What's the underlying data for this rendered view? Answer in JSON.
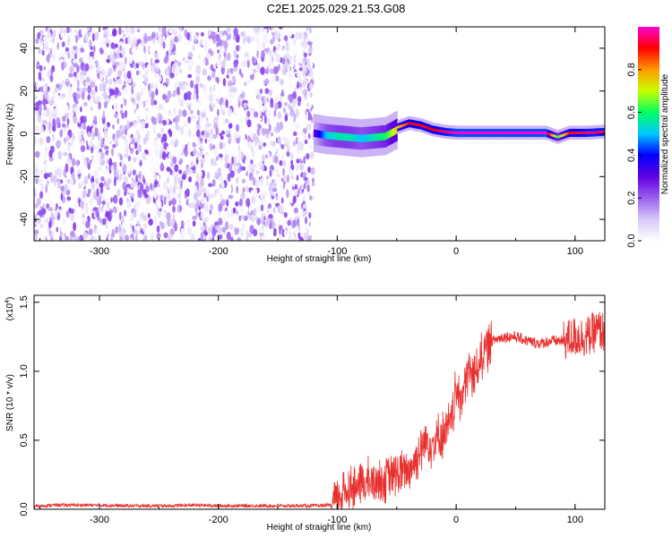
{
  "title": "C2E1.2025.029.21.53.G08",
  "chart_data": [
    {
      "type": "heatmap",
      "xlabel": "Height of straight line (km)",
      "ylabel": "Frequency (Hz)",
      "xlim": [
        -355,
        125
      ],
      "ylim": [
        -50,
        50
      ],
      "xticks": [
        -300,
        -200,
        -100,
        0,
        100
      ],
      "yticks": [
        -40,
        -20,
        0,
        20,
        40
      ],
      "colorbar": {
        "label": "Normalized spectral amplitude",
        "range": [
          0,
          1
        ],
        "ticks": [
          "0.0",
          "0.2",
          "0.4",
          "0.6",
          "0.8"
        ],
        "colors": [
          "#ffffff",
          "#d8c8f8",
          "#9a60f0",
          "#6000e0",
          "#0000ff",
          "#00c8ff",
          "#00ff60",
          "#c8ff00",
          "#ff9900",
          "#ff0000",
          "#ff00d0"
        ]
      },
      "noise_region": {
        "x_range": [
          -355,
          -120
        ],
        "amplitude_range": [
          0.0,
          0.25
        ]
      },
      "signal_track": [
        {
          "x": -120,
          "f": 1.5,
          "amp": 0.3
        },
        {
          "x": -110,
          "f": 0.5,
          "amp": 0.5
        },
        {
          "x": -100,
          "f": 0,
          "amp": 0.55
        },
        {
          "x": -90,
          "f": -0.5,
          "amp": 0.55
        },
        {
          "x": -80,
          "f": -1,
          "amp": 0.5
        },
        {
          "x": -70,
          "f": -0.5,
          "amp": 0.55
        },
        {
          "x": -60,
          "f": 0,
          "amp": 0.6
        },
        {
          "x": -50,
          "f": 3,
          "amp": 0.75
        },
        {
          "x": -40,
          "f": 5,
          "amp": 0.9
        },
        {
          "x": -30,
          "f": 4,
          "amp": 0.9
        },
        {
          "x": -20,
          "f": 2,
          "amp": 0.9
        },
        {
          "x": -10,
          "f": 1,
          "amp": 0.95
        },
        {
          "x": 0,
          "f": 0.5,
          "amp": 1.0
        },
        {
          "x": 20,
          "f": 0.5,
          "amp": 1.0
        },
        {
          "x": 40,
          "f": 0.5,
          "amp": 1.0
        },
        {
          "x": 60,
          "f": 0.5,
          "amp": 1.0
        },
        {
          "x": 75,
          "f": 0.5,
          "amp": 1.0
        },
        {
          "x": 85,
          "f": -1.5,
          "amp": 0.6
        },
        {
          "x": 95,
          "f": 0.5,
          "amp": 0.9
        },
        {
          "x": 110,
          "f": 0.5,
          "amp": 0.95
        },
        {
          "x": 125,
          "f": 1,
          "amp": 0.95
        }
      ]
    },
    {
      "type": "line",
      "xlabel": "Height of straight line (km)",
      "ylabel": "SNR (10 * v/v)",
      "yscale_label": "(x10",
      "yscale_exp": "4",
      "yscale_close": ")",
      "xlim": [
        -355,
        125
      ],
      "ylim": [
        0,
        1.55
      ],
      "xticks": [
        -300,
        -200,
        -100,
        0,
        100
      ],
      "yticks": [
        "0.0",
        "0.5",
        "1.0",
        "1.5"
      ],
      "ytick_values": [
        0,
        0.5,
        1.0,
        1.5
      ],
      "color": "#e8312f",
      "series": [
        {
          "x": [
            -355,
            -340,
            -320,
            -300,
            -280,
            -260,
            -240,
            -220,
            -200,
            -180,
            -160,
            -140,
            -120,
            -105,
            -100,
            -95,
            -90,
            -80,
            -70,
            -60,
            -50,
            -40,
            -35,
            -30,
            -25,
            -20,
            -10,
            -5,
            0,
            5,
            10,
            15,
            20,
            25,
            30,
            40,
            50,
            60,
            70,
            80,
            90,
            100,
            110,
            120,
            125
          ],
          "y": [
            0.02,
            0.03,
            0.03,
            0.03,
            0.025,
            0.025,
            0.025,
            0.03,
            0.025,
            0.025,
            0.025,
            0.025,
            0.025,
            0.03,
            0.08,
            0.12,
            0.15,
            0.18,
            0.2,
            0.22,
            0.25,
            0.28,
            0.35,
            0.42,
            0.5,
            0.48,
            0.55,
            0.6,
            0.85,
            0.82,
            1.0,
            0.95,
            1.1,
            1.15,
            1.22,
            1.25,
            1.25,
            1.22,
            1.2,
            1.22,
            1.22,
            1.25,
            1.25,
            1.3,
            1.28
          ]
        }
      ]
    }
  ]
}
